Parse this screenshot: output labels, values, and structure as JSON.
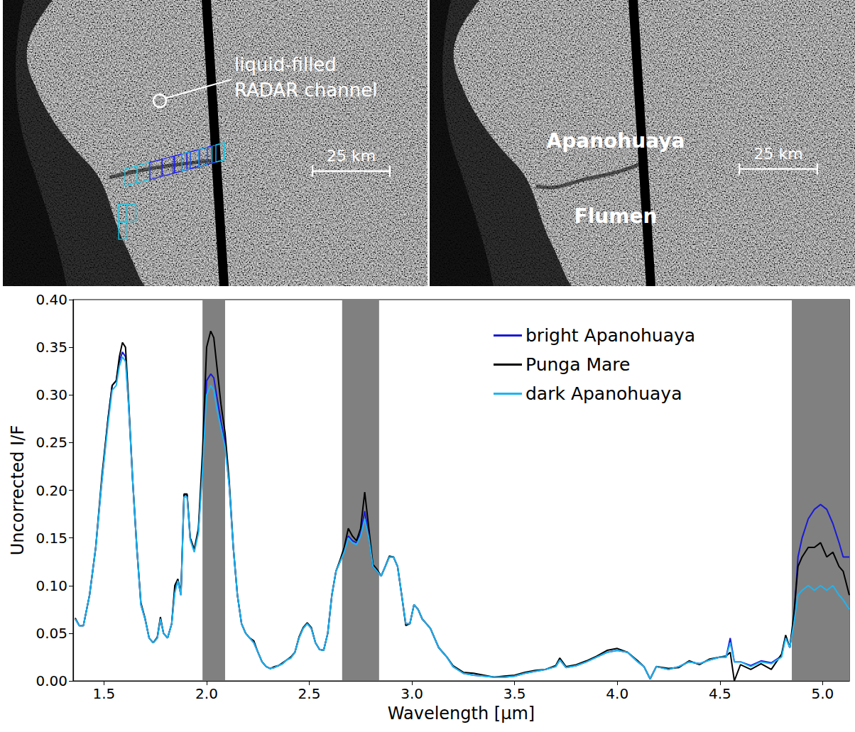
{
  "panels": [
    {
      "type": "image",
      "annotation": "liquid-filled RADAR channel",
      "scale_bar": "25 km"
    },
    {
      "type": "image",
      "labels": [
        "Apanohuaya",
        "Flumen"
      ],
      "scale_bar": "25 km"
    }
  ],
  "chart_data": {
    "type": "line",
    "x_label": "Wavelength [µm]",
    "y_label": "Uncorrected I/F",
    "x": [
      1.36,
      1.38,
      1.4,
      1.43,
      1.46,
      1.49,
      1.52,
      1.54,
      1.56,
      1.575,
      1.59,
      1.605,
      1.62,
      1.64,
      1.66,
      1.68,
      1.7,
      1.72,
      1.74,
      1.76,
      1.775,
      1.79,
      1.81,
      1.83,
      1.845,
      1.86,
      1.875,
      1.89,
      1.905,
      1.92,
      1.94,
      1.96,
      1.98,
      2.0,
      2.02,
      2.035,
      2.05,
      2.07,
      2.09,
      2.11,
      2.13,
      2.15,
      2.17,
      2.19,
      2.21,
      2.23,
      2.25,
      2.27,
      2.29,
      2.31,
      2.33,
      2.35,
      2.37,
      2.39,
      2.41,
      2.43,
      2.45,
      2.47,
      2.49,
      2.51,
      2.53,
      2.55,
      2.57,
      2.59,
      2.61,
      2.63,
      2.65,
      2.67,
      2.69,
      2.71,
      2.73,
      2.75,
      2.77,
      2.79,
      2.81,
      2.83,
      2.85,
      2.87,
      2.89,
      2.91,
      2.93,
      2.95,
      2.97,
      2.99,
      3.01,
      3.03,
      3.05,
      3.07,
      3.09,
      3.11,
      3.13,
      3.15,
      3.17,
      3.2,
      3.25,
      3.3,
      3.35,
      3.4,
      3.45,
      3.5,
      3.55,
      3.6,
      3.65,
      3.7,
      3.72,
      3.75,
      3.8,
      3.85,
      3.9,
      3.95,
      4.0,
      4.05,
      4.1,
      4.13,
      4.16,
      4.19,
      4.25,
      4.3,
      4.35,
      4.4,
      4.45,
      4.5,
      4.53,
      4.55,
      4.57,
      4.6,
      4.65,
      4.7,
      4.75,
      4.8,
      4.82,
      4.84,
      4.86,
      4.88,
      4.9,
      4.93,
      4.96,
      4.99,
      5.02,
      5.05,
      5.08,
      5.1,
      5.13
    ],
    "series": [
      {
        "name": "bright Apanohuaya",
        "color": "#1a1ad6",
        "values": [
          0.065,
          0.058,
          0.058,
          0.09,
          0.14,
          0.21,
          0.275,
          0.31,
          0.315,
          0.335,
          0.345,
          0.34,
          0.29,
          0.21,
          0.14,
          0.08,
          0.065,
          0.045,
          0.04,
          0.045,
          0.065,
          0.05,
          0.045,
          0.06,
          0.095,
          0.105,
          0.09,
          0.195,
          0.195,
          0.15,
          0.137,
          0.157,
          0.225,
          0.315,
          0.322,
          0.318,
          0.298,
          0.272,
          0.25,
          0.205,
          0.14,
          0.09,
          0.06,
          0.05,
          0.045,
          0.04,
          0.03,
          0.02,
          0.015,
          0.013,
          0.014,
          0.016,
          0.018,
          0.022,
          0.024,
          0.03,
          0.045,
          0.055,
          0.06,
          0.055,
          0.04,
          0.033,
          0.032,
          0.05,
          0.09,
          0.115,
          0.125,
          0.137,
          0.152,
          0.147,
          0.145,
          0.155,
          0.178,
          0.152,
          0.12,
          0.115,
          0.11,
          0.12,
          0.13,
          0.13,
          0.12,
          0.09,
          0.06,
          0.06,
          0.08,
          0.075,
          0.065,
          0.06,
          0.055,
          0.045,
          0.035,
          0.03,
          0.025,
          0.015,
          0.008,
          0.006,
          0.005,
          0.004,
          0.004,
          0.005,
          0.008,
          0.01,
          0.012,
          0.015,
          0.022,
          0.014,
          0.016,
          0.02,
          0.025,
          0.03,
          0.032,
          0.03,
          0.02,
          0.015,
          0.002,
          0.015,
          0.012,
          0.015,
          0.02,
          0.018,
          0.022,
          0.025,
          0.025,
          0.045,
          0.02,
          0.02,
          0.016,
          0.021,
          0.019,
          0.026,
          0.047,
          0.035,
          0.065,
          0.13,
          0.15,
          0.17,
          0.18,
          0.185,
          0.18,
          0.165,
          0.145,
          0.13,
          0.13
        ]
      },
      {
        "name": "Punga Mare",
        "color": "#000000",
        "values": [
          0.066,
          0.058,
          0.058,
          0.09,
          0.14,
          0.215,
          0.275,
          0.31,
          0.315,
          0.34,
          0.355,
          0.35,
          0.295,
          0.21,
          0.14,
          0.082,
          0.066,
          0.045,
          0.04,
          0.046,
          0.067,
          0.05,
          0.045,
          0.06,
          0.1,
          0.107,
          0.092,
          0.196,
          0.196,
          0.15,
          0.138,
          0.16,
          0.24,
          0.35,
          0.367,
          0.36,
          0.33,
          0.29,
          0.26,
          0.21,
          0.14,
          0.09,
          0.06,
          0.05,
          0.045,
          0.042,
          0.03,
          0.02,
          0.015,
          0.013,
          0.015,
          0.016,
          0.019,
          0.022,
          0.025,
          0.03,
          0.046,
          0.056,
          0.061,
          0.056,
          0.04,
          0.033,
          0.032,
          0.05,
          0.09,
          0.115,
          0.127,
          0.14,
          0.16,
          0.152,
          0.147,
          0.16,
          0.198,
          0.16,
          0.122,
          0.117,
          0.11,
          0.12,
          0.131,
          0.13,
          0.12,
          0.09,
          0.058,
          0.06,
          0.08,
          0.075,
          0.065,
          0.06,
          0.055,
          0.045,
          0.035,
          0.03,
          0.025,
          0.016,
          0.009,
          0.008,
          0.006,
          0.004,
          0.005,
          0.006,
          0.009,
          0.011,
          0.012,
          0.016,
          0.024,
          0.015,
          0.017,
          0.021,
          0.026,
          0.032,
          0.034,
          0.03,
          0.021,
          0.015,
          0.002,
          0.015,
          0.013,
          0.014,
          0.021,
          0.017,
          0.023,
          0.025,
          0.026,
          0.03,
          0,
          0.017,
          0.012,
          0.018,
          0.012,
          0.028,
          0.048,
          0.035,
          0.07,
          0.12,
          0.13,
          0.14,
          0.14,
          0.145,
          0.13,
          0.135,
          0.12,
          0.115,
          0.09
        ]
      },
      {
        "name": "dark Apanohuaya",
        "color": "#1eb4f0",
        "values": [
          0.065,
          0.058,
          0.058,
          0.09,
          0.14,
          0.21,
          0.27,
          0.305,
          0.31,
          0.33,
          0.34,
          0.335,
          0.29,
          0.21,
          0.14,
          0.08,
          0.065,
          0.045,
          0.04,
          0.045,
          0.065,
          0.05,
          0.045,
          0.06,
          0.092,
          0.105,
          0.09,
          0.193,
          0.193,
          0.148,
          0.135,
          0.155,
          0.22,
          0.3,
          0.31,
          0.305,
          0.285,
          0.265,
          0.245,
          0.205,
          0.14,
          0.09,
          0.06,
          0.05,
          0.045,
          0.04,
          0.03,
          0.02,
          0.015,
          0.013,
          0.014,
          0.016,
          0.018,
          0.022,
          0.024,
          0.03,
          0.045,
          0.055,
          0.06,
          0.055,
          0.04,
          0.033,
          0.032,
          0.05,
          0.09,
          0.115,
          0.125,
          0.135,
          0.15,
          0.145,
          0.143,
          0.152,
          0.17,
          0.15,
          0.12,
          0.115,
          0.11,
          0.12,
          0.13,
          0.13,
          0.12,
          0.09,
          0.06,
          0.06,
          0.08,
          0.075,
          0.065,
          0.06,
          0.055,
          0.045,
          0.035,
          0.03,
          0.025,
          0.015,
          0.008,
          0.006,
          0.005,
          0.004,
          0.004,
          0.005,
          0.008,
          0.01,
          0.012,
          0.015,
          0.022,
          0.014,
          0.016,
          0.02,
          0.025,
          0.03,
          0.032,
          0.03,
          0.02,
          0.015,
          0.002,
          0.015,
          0.012,
          0.015,
          0.02,
          0.018,
          0.022,
          0.025,
          0.025,
          0.04,
          0.02,
          0.02,
          0.015,
          0.02,
          0.018,
          0.025,
          0.045,
          0.035,
          0.06,
          0.09,
          0.095,
          0.1,
          0.095,
          0.1,
          0.095,
          0.1,
          0.09,
          0.085,
          0.075
        ]
      }
    ],
    "xlim": [
      1.35,
      5.13
    ],
    "xticks": [
      1.5,
      {
        "value": 2,
        "label": "2.0"
      },
      2.5,
      {
        "value": 3,
        "label": "3.0"
      },
      3.5,
      {
        "value": 4,
        "label": "4.0"
      },
      4.5,
      {
        "value": 5,
        "label": "5.0"
      }
    ],
    "ylim": [
      0,
      0.4
    ],
    "yticks": [
      {
        "value": 0,
        "label": "0.00"
      },
      {
        "value": 0.05,
        "label": "0.05"
      },
      {
        "value": 0.1,
        "label": "0.10"
      },
      {
        "value": 0.15,
        "label": "0.15"
      },
      {
        "value": 0.2,
        "label": "0.20"
      },
      {
        "value": 0.25,
        "label": "0.25"
      },
      {
        "value": 0.3,
        "label": "0.30"
      },
      {
        "value": 0.35,
        "label": "0.35"
      },
      {
        "value": 0.4,
        "label": "0.40"
      }
    ],
    "shaded_bands": [
      [
        1.98,
        2.09
      ],
      [
        2.66,
        2.84
      ],
      [
        4.85,
        5.13
      ]
    ],
    "legend": "upper right",
    "grid": false
  }
}
